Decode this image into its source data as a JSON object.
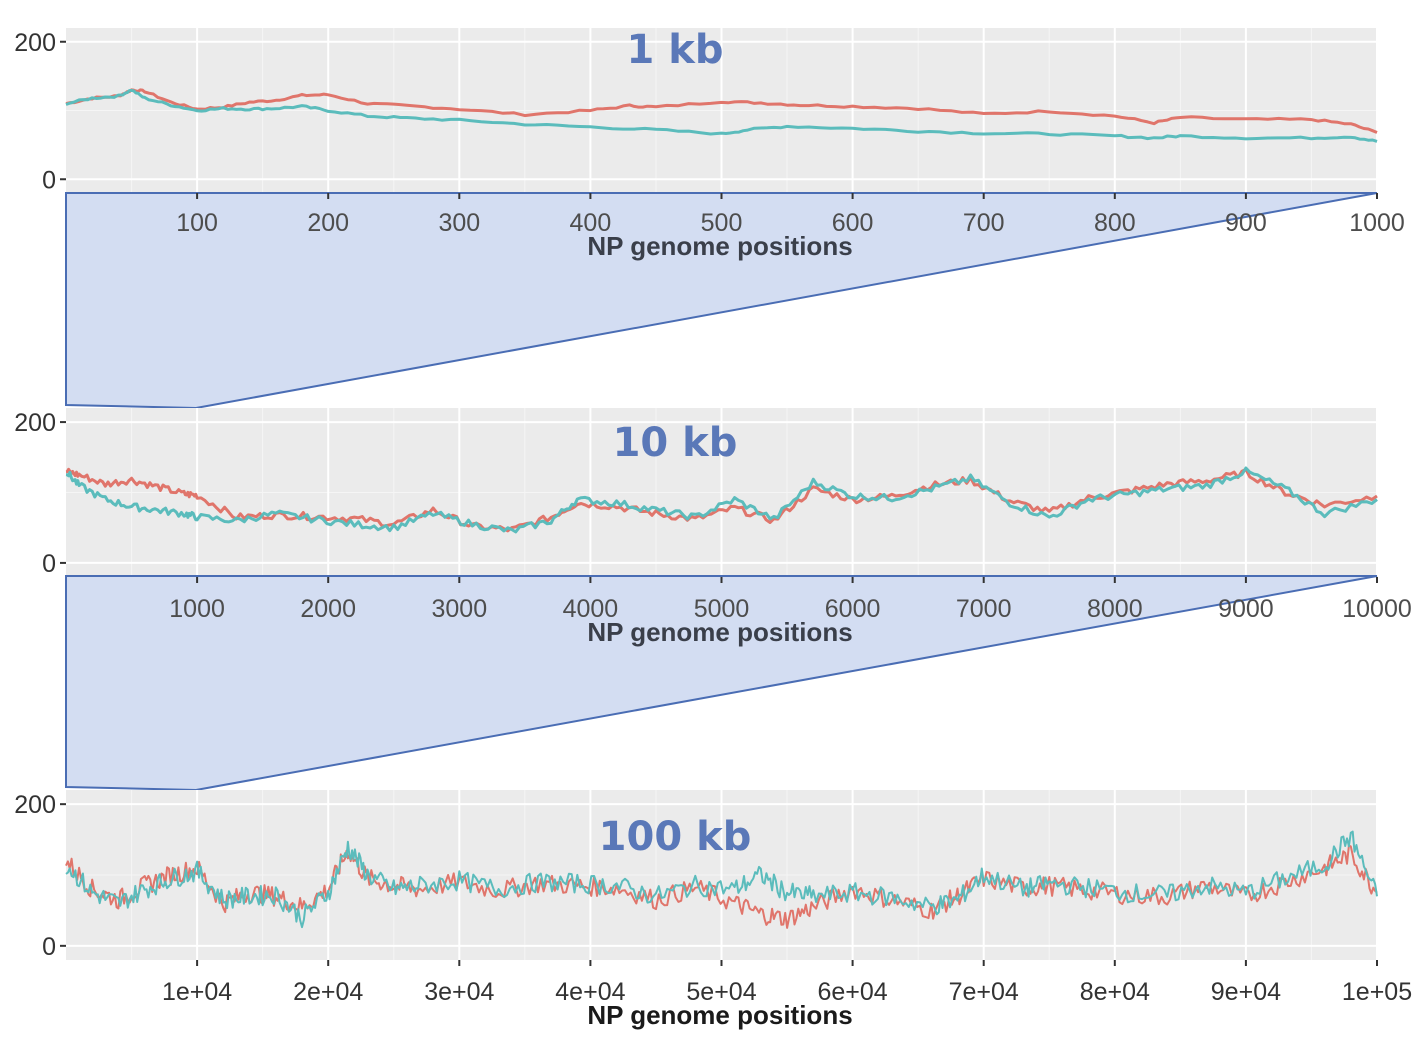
{
  "chart_data": [
    {
      "type": "line",
      "annotation": "1 kb",
      "xlabel": "NP genome positions",
      "xlim": [
        0,
        1000
      ],
      "ylim": [
        -20,
        220
      ],
      "xticks": [
        100,
        200,
        300,
        400,
        500,
        600,
        700,
        800,
        900,
        1000
      ],
      "xtick_labels": [
        "100",
        "200",
        "300",
        "400",
        "500",
        "600",
        "700",
        "800",
        "900",
        "1000"
      ],
      "yticks": [
        0,
        200
      ],
      "ytick_labels": [
        "0",
        "200"
      ],
      "grid": true,
      "series": [
        {
          "color": "#e0756b",
          "x": [
            0,
            20,
            40,
            50,
            60,
            80,
            100,
            120,
            140,
            160,
            180,
            200,
            230,
            260,
            300,
            350,
            400,
            430,
            450,
            500,
            530,
            560,
            600,
            650,
            700,
            750,
            800,
            830,
            850,
            900,
            950,
            980,
            1000
          ],
          "y": [
            110,
            118,
            121,
            130,
            128,
            112,
            102,
            105,
            112,
            115,
            122,
            123,
            110,
            107,
            102,
            94,
            100,
            107,
            105,
            113,
            111,
            108,
            106,
            103,
            95,
            99,
            92,
            82,
            90,
            87,
            87,
            80,
            68
          ]
        },
        {
          "color": "#5bbcbc",
          "x": [
            0,
            20,
            40,
            50,
            60,
            80,
            100,
            120,
            140,
            160,
            180,
            200,
            230,
            260,
            300,
            350,
            400,
            450,
            500,
            520,
            550,
            600,
            650,
            700,
            750,
            800,
            830,
            850,
            900,
            950,
            980,
            1000
          ],
          "y": [
            110,
            118,
            121,
            130,
            118,
            108,
            100,
            103,
            102,
            103,
            106,
            100,
            92,
            89,
            86,
            80,
            76,
            72,
            66,
            72,
            77,
            74,
            70,
            67,
            66,
            63,
            60,
            63,
            60,
            60,
            62,
            55
          ]
        }
      ]
    },
    {
      "type": "line",
      "annotation": "10 kb",
      "xlabel": "NP genome positions",
      "xlim": [
        0,
        10000
      ],
      "ylim": [
        -20,
        220
      ],
      "xticks": [
        1000,
        2000,
        3000,
        4000,
        5000,
        6000,
        7000,
        8000,
        9000,
        10000
      ],
      "xtick_labels": [
        "1000",
        "2000",
        "3000",
        "4000",
        "5000",
        "6000",
        "7000",
        "8000",
        "9000",
        "10000"
      ],
      "yticks": [
        0,
        200
      ],
      "ytick_labels": [
        "0",
        "200"
      ],
      "grid": true,
      "series": [
        {
          "color": "#e0756b",
          "x": [
            0,
            100,
            300,
            500,
            700,
            900,
            1000,
            1300,
            1600,
            1900,
            2200,
            2500,
            2800,
            3100,
            3400,
            3700,
            3900,
            4200,
            4500,
            4800,
            5100,
            5400,
            5700,
            6000,
            6300,
            6600,
            6900,
            7200,
            7500,
            7800,
            8100,
            8400,
            8700,
            9000,
            9300,
            9600,
            10000
          ],
          "y": [
            130,
            125,
            112,
            118,
            108,
            98,
            96,
            65,
            68,
            66,
            63,
            55,
            75,
            52,
            47,
            65,
            85,
            80,
            70,
            62,
            78,
            60,
            105,
            90,
            95,
            110,
            118,
            88,
            72,
            92,
            102,
            112,
            117,
            128,
            100,
            82,
            95
          ]
        },
        {
          "color": "#5bbcbc",
          "x": [
            0,
            100,
            300,
            500,
            700,
            900,
            1000,
            1300,
            1600,
            1900,
            2200,
            2500,
            2800,
            3100,
            3400,
            3700,
            3900,
            4200,
            4500,
            4800,
            5100,
            5400,
            5700,
            6000,
            6300,
            6600,
            6900,
            7200,
            7500,
            7800,
            8100,
            8400,
            8700,
            9000,
            9300,
            9600,
            10000
          ],
          "y": [
            130,
            110,
            90,
            80,
            75,
            70,
            65,
            60,
            70,
            62,
            55,
            50,
            70,
            55,
            45,
            60,
            90,
            85,
            75,
            65,
            90,
            62,
            115,
            95,
            92,
            105,
            120,
            85,
            65,
            90,
            98,
            105,
            110,
            130,
            105,
            70,
            90
          ]
        }
      ]
    },
    {
      "type": "line",
      "annotation": "100 kb",
      "xlabel": "NP genome positions",
      "xlim": [
        0,
        100000
      ],
      "ylim": [
        -20,
        220
      ],
      "xticks": [
        10000,
        20000,
        30000,
        40000,
        50000,
        60000,
        70000,
        80000,
        90000,
        100000
      ],
      "xtick_labels": [
        "1e+04",
        "2e+04",
        "3e+04",
        "4e+04",
        "5e+04",
        "6e+04",
        "7e+04",
        "8e+04",
        "9e+04",
        "1e+05"
      ],
      "yticks": [
        0,
        200
      ],
      "ytick_labels": [
        "0",
        "200"
      ],
      "grid": true,
      "series": [
        {
          "color": "#e0756b",
          "x": [
            0,
            2000,
            4000,
            6000,
            8000,
            10000,
            12000,
            14000,
            16000,
            18000,
            20000,
            21500,
            23000,
            25000,
            27000,
            30000,
            33000,
            36000,
            39000,
            42000,
            45000,
            48000,
            51000,
            53000,
            55000,
            57000,
            60000,
            63000,
            66000,
            68000,
            70000,
            73000,
            75000,
            78000,
            81000,
            84000,
            87000,
            90000,
            93000,
            96000,
            98000,
            100000
          ],
          "y": [
            120,
            80,
            65,
            85,
            100,
            110,
            60,
            75,
            70,
            55,
            80,
            135,
            95,
            85,
            80,
            90,
            78,
            88,
            85,
            82,
            65,
            82,
            60,
            45,
            38,
            55,
            80,
            65,
            50,
            70,
            95,
            82,
            85,
            78,
            72,
            70,
            85,
            70,
            90,
            110,
            130,
            75
          ]
        },
        {
          "color": "#5bbcbc",
          "x": [
            0,
            2000,
            4000,
            6000,
            8000,
            10000,
            12000,
            14000,
            16000,
            18000,
            20000,
            21500,
            23000,
            25000,
            27000,
            30000,
            33000,
            36000,
            39000,
            42000,
            45000,
            48000,
            51000,
            53000,
            55000,
            57000,
            60000,
            63000,
            66000,
            68000,
            70000,
            73000,
            75000,
            78000,
            81000,
            84000,
            87000,
            90000,
            93000,
            96000,
            98000,
            100000
          ],
          "y": [
            115,
            75,
            60,
            80,
            95,
            105,
            65,
            70,
            72,
            40,
            75,
            140,
            100,
            80,
            85,
            92,
            80,
            90,
            88,
            85,
            70,
            85,
            80,
            100,
            75,
            70,
            75,
            68,
            55,
            65,
            100,
            80,
            88,
            82,
            75,
            72,
            85,
            75,
            95,
            115,
            155,
            70
          ]
        }
      ]
    }
  ]
}
